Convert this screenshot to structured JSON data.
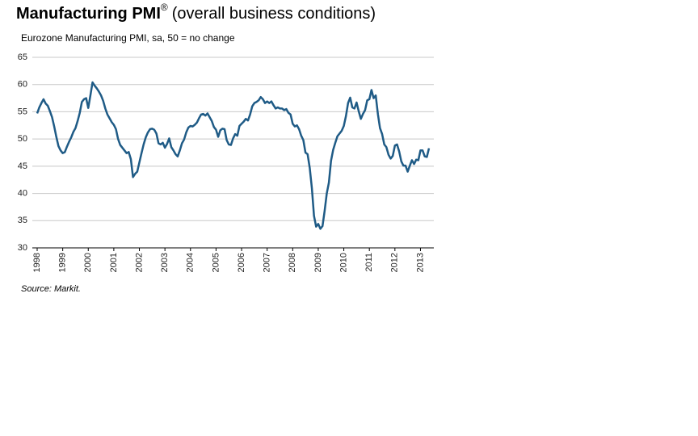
{
  "chart_data": {
    "type": "line",
    "title": "Manufacturing PMI",
    "title_superscript": "®",
    "title_suffix": "(overall business conditions)",
    "subtitle": "Eurozone Manufacturing PMI, sa, 50 = no change",
    "source": "Source: Markit.",
    "categories": [
      "1998",
      null,
      null,
      null,
      null,
      null,
      null,
      null,
      null,
      null,
      null,
      null,
      "1999",
      null,
      null,
      null,
      null,
      null,
      null,
      null,
      null,
      null,
      null,
      null,
      "2000",
      null,
      null,
      null,
      null,
      null,
      null,
      null,
      null,
      null,
      null,
      null,
      "2001",
      null,
      null,
      null,
      null,
      null,
      null,
      null,
      null,
      null,
      null,
      null,
      "2002",
      null,
      null,
      null,
      null,
      null,
      null,
      null,
      null,
      null,
      null,
      null,
      "2003",
      null,
      null,
      null,
      null,
      null,
      null,
      null,
      null,
      null,
      null,
      null,
      "2004",
      null,
      null,
      null,
      null,
      null,
      null,
      null,
      null,
      null,
      null,
      null,
      "2005",
      null,
      null,
      null,
      null,
      null,
      null,
      null,
      null,
      null,
      null,
      null,
      "2006",
      null,
      null,
      null,
      null,
      null,
      null,
      null,
      null,
      null,
      null,
      null,
      "2007",
      null,
      null,
      null,
      null,
      null,
      null,
      null,
      null,
      null,
      null,
      null,
      "2008",
      null,
      null,
      null,
      null,
      null,
      null,
      null,
      null,
      null,
      null,
      null,
      "2009",
      null,
      null,
      null,
      null,
      null,
      null,
      null,
      null,
      null,
      null,
      null,
      "2010",
      null,
      null,
      null,
      null,
      null,
      null,
      null,
      null,
      null,
      null,
      null,
      "2011",
      null,
      null,
      null,
      null,
      null,
      null,
      null,
      null,
      null,
      null,
      null,
      "2012",
      null,
      null,
      null,
      null,
      null,
      null,
      null,
      null,
      null,
      null,
      null,
      "2013",
      null,
      null,
      null,
      null
    ],
    "series": [
      {
        "color": "#1f5b86",
        "values": [
          54.7,
          55.8,
          56.6,
          57.3,
          56.5,
          56.1,
          55.1,
          54.0,
          52.3,
          50.4,
          48.7,
          47.9,
          47.4,
          47.6,
          48.6,
          49.5,
          50.3,
          51.3,
          52.0,
          53.3,
          54.8,
          56.8,
          57.3,
          57.5,
          55.7,
          58.0,
          60.4,
          59.8,
          59.3,
          58.7,
          58.0,
          57.0,
          55.6,
          54.5,
          53.8,
          53.1,
          52.6,
          51.8,
          50.0,
          48.9,
          48.4,
          47.9,
          47.4,
          47.6,
          46.3,
          43.0,
          43.6,
          44.0,
          45.7,
          47.4,
          49.0,
          50.3,
          51.2,
          51.8,
          51.9,
          51.7,
          51.0,
          49.2,
          49.0,
          49.3,
          48.4,
          49.1,
          50.1,
          48.5,
          47.9,
          47.2,
          46.8,
          47.9,
          49.2,
          49.9,
          51.2,
          52.1,
          52.4,
          52.3,
          52.6,
          53.0,
          53.8,
          54.5,
          54.6,
          54.3,
          54.7,
          54.0,
          53.3,
          52.2,
          51.7,
          50.4,
          51.6,
          51.9,
          51.8,
          49.8,
          49.0,
          48.9,
          50.1,
          50.9,
          50.6,
          52.4,
          52.8,
          53.2,
          53.7,
          53.4,
          54.5,
          56.0,
          56.6,
          56.8,
          57.1,
          57.7,
          57.3,
          56.6,
          56.9,
          56.6,
          56.9,
          56.2,
          55.6,
          55.8,
          55.6,
          55.6,
          55.3,
          55.5,
          54.8,
          54.5,
          52.8,
          52.3,
          52.5,
          51.8,
          50.6,
          49.8,
          47.5,
          47.2,
          44.7,
          41.0,
          35.9,
          33.9,
          34.4,
          33.5,
          34.0,
          36.8,
          40.0,
          42.0,
          46.0,
          48.0,
          49.3,
          50.5,
          51.0,
          51.5,
          52.4,
          54.2,
          56.6,
          57.6,
          55.8,
          55.6,
          56.7,
          55.1,
          53.7,
          54.6,
          55.3,
          57.1,
          57.3,
          59.0,
          57.5,
          58.0,
          54.6,
          52.0,
          50.9,
          49.0,
          48.5,
          47.1,
          46.4,
          46.9,
          48.8,
          49.0,
          47.7,
          45.9,
          45.1,
          45.1,
          44.0,
          45.1,
          46.1,
          45.4,
          46.2,
          46.1,
          47.9,
          47.9,
          46.8,
          46.7,
          48.3
        ]
      }
    ],
    "ylim": [
      30,
      65
    ],
    "yticks": [
      30,
      35,
      40,
      45,
      50,
      55,
      60,
      65
    ],
    "grid": true
  }
}
